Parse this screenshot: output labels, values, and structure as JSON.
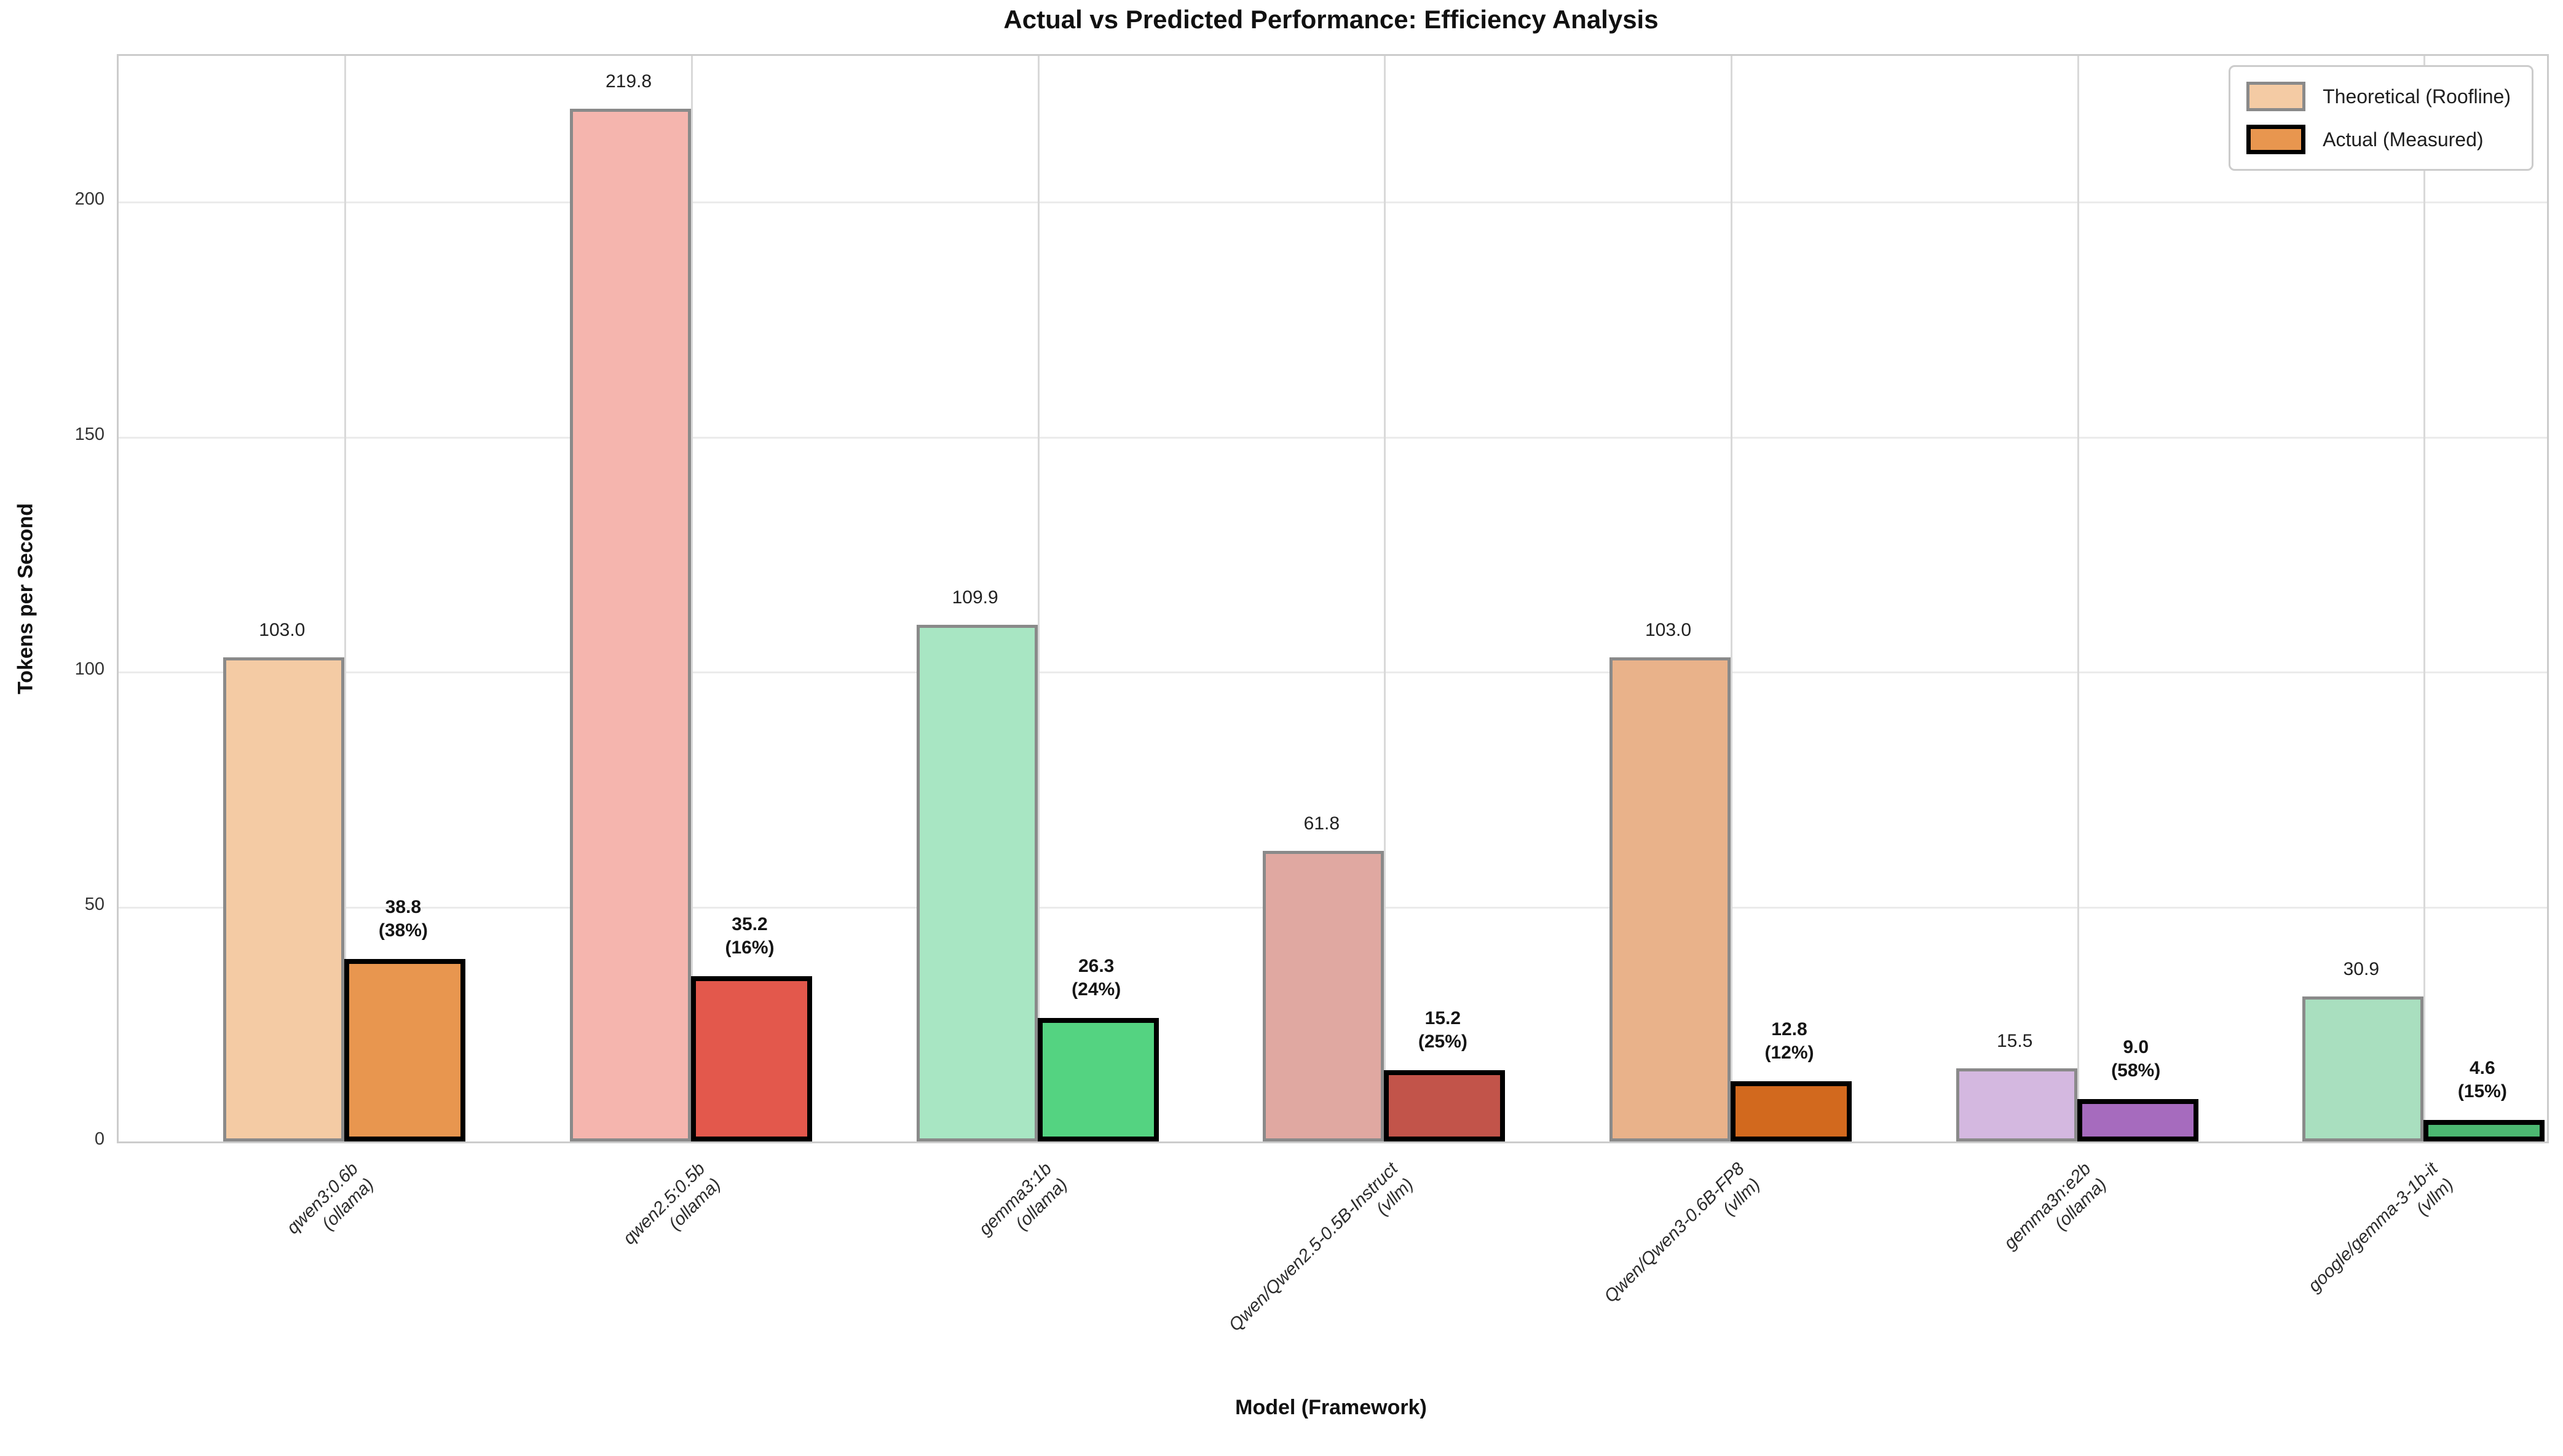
{
  "chart_data": {
    "type": "bar",
    "title": "Actual vs Predicted Performance: Efficiency Analysis",
    "xlabel": "Model (Framework)",
    "ylabel": "Tokens per Second",
    "ylim": [
      0,
      231
    ],
    "yticks": [
      0,
      50,
      100,
      150,
      200
    ],
    "grid": "horizontal and vertical light-gray gridlines",
    "legend_position": "upper right",
    "categories": [
      [
        "qwen3:0.6b",
        "(ollama)"
      ],
      [
        "qwen2.5:0.5b",
        "(ollama)"
      ],
      [
        "gemma3:1b",
        "(ollama)"
      ],
      [
        "Qwen/Qwen2.5-0.5B-Instruct",
        "(vllm)"
      ],
      [
        "Qwen/Qwen3-0.6B-FP8",
        "(vllm)"
      ],
      [
        "gemma3n:e2b",
        "(ollama)"
      ],
      [
        "google/gemma-3-1b-it",
        "(vllm)"
      ]
    ],
    "series": [
      {
        "name": "Theoretical (Roofline)",
        "values": [
          103.0,
          219.8,
          109.9,
          61.8,
          103.0,
          15.5,
          30.9
        ],
        "labels": [
          "103.0",
          "219.8",
          "109.9",
          "61.8",
          "103.0",
          "15.5",
          "30.9"
        ],
        "colors": [
          "#f4cba4",
          "#f5b5ae",
          "#a8e6c3",
          "#e0a8a1",
          "#e9b28a",
          "#d4b8e0",
          "#a9dfbf"
        ],
        "edge_color": "#8a8a8a",
        "legend_fill": "#f4cba4"
      },
      {
        "name": "Actual (Measured)",
        "values": [
          38.8,
          35.2,
          26.3,
          15.2,
          12.8,
          9.0,
          4.6
        ],
        "labels": [
          "38.8",
          "35.2",
          "26.3",
          "15.2",
          "12.8",
          "9.0",
          "4.6"
        ],
        "pct_labels": [
          "(38%)",
          "(16%)",
          "(24%)",
          "(25%)",
          "(12%)",
          "(58%)",
          "(15%)"
        ],
        "colors": [
          "#e8964f",
          "#e3584c",
          "#54d381",
          "#c2544a",
          "#d2691e",
          "#a66bbe",
          "#4cb871"
        ],
        "edge_color": "#000000",
        "legend_fill": "#e8964f"
      }
    ]
  }
}
